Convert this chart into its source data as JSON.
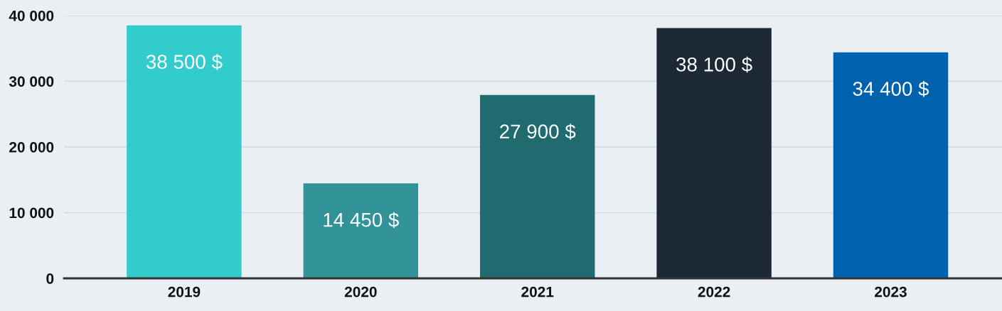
{
  "chart_data": {
    "type": "bar",
    "categories": [
      "2019",
      "2020",
      "2021",
      "2022",
      "2023"
    ],
    "values": [
      38500,
      14450,
      27900,
      38100,
      34400
    ],
    "colors": [
      "#33cccc",
      "#319297",
      "#1f6b70",
      "#1c2833",
      "#0062ad"
    ],
    "value_labels": [
      "38 500 $",
      "14 450 $",
      "27 900 $",
      "38 100 $",
      "34 400 $"
    ],
    "ylim": [
      0,
      40000
    ],
    "yticks": [
      {
        "value": 0,
        "label": "0"
      },
      {
        "value": 10000,
        "label": "10 000"
      },
      {
        "value": 20000,
        "label": "20 000"
      },
      {
        "value": 30000,
        "label": "30 000"
      },
      {
        "value": 40000,
        "label": "40 000"
      }
    ],
    "grid": "y",
    "legend": false
  }
}
